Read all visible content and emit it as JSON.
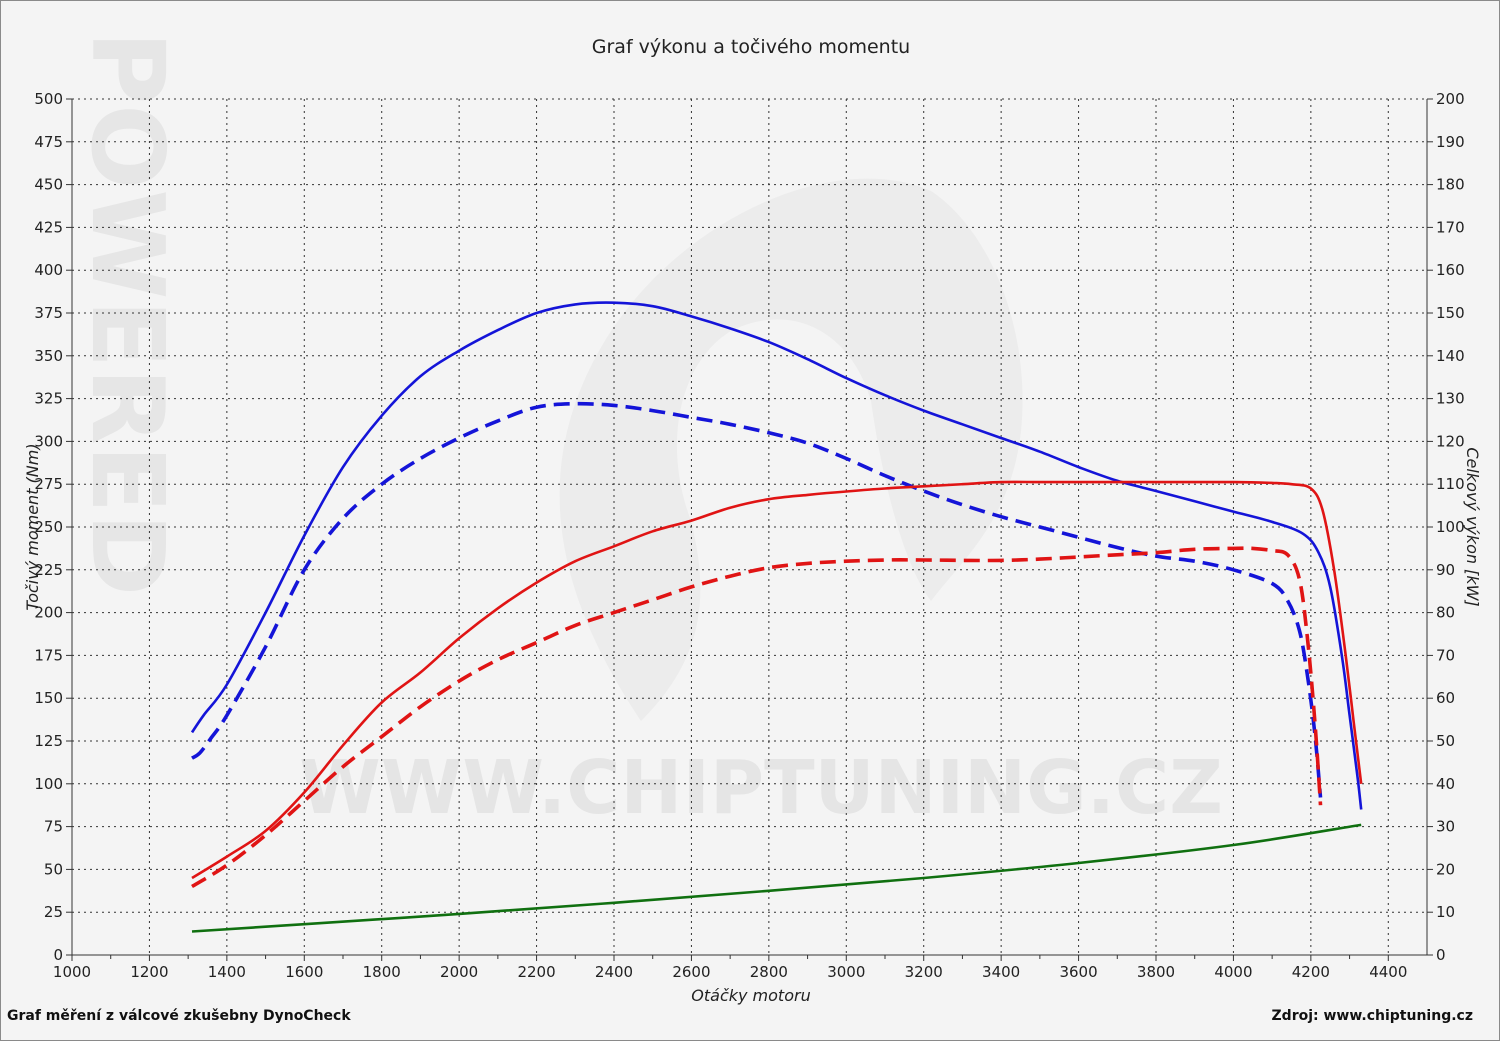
{
  "chart_data": {
    "type": "line",
    "title": "Graf výkonu a točivého momentu",
    "xlabel": "Otáčky motoru",
    "ylabel_left": "Točivý moment (Nm)",
    "ylabel_right": "Celkový výkon [kW]",
    "xlim": [
      1000,
      4500
    ],
    "ylim_left": [
      0,
      500
    ],
    "ylim_right": [
      0,
      200
    ],
    "x_ticks": [
      "1000",
      "1200",
      "1400",
      "1600",
      "1800",
      "2000",
      "2200",
      "2400",
      "2600",
      "2800",
      "3000",
      "3200",
      "3400",
      "3600",
      "3800",
      "4000",
      "4200",
      "4400"
    ],
    "y_left_ticks": [
      "0",
      "25",
      "50",
      "75",
      "100",
      "125",
      "150",
      "175",
      "200",
      "225",
      "250",
      "275",
      "300",
      "325",
      "350",
      "375",
      "400",
      "425",
      "450",
      "475",
      "500"
    ],
    "y_right_ticks": [
      "0",
      "10",
      "20",
      "30",
      "40",
      "50",
      "60",
      "70",
      "80",
      "90",
      "100",
      "110",
      "120",
      "130",
      "140",
      "150",
      "160",
      "170",
      "180",
      "190",
      "200"
    ],
    "grid": true,
    "series": [
      {
        "key": "torque_tuned",
        "axis": "left",
        "color": "#1414d8",
        "dash": false,
        "x": [
          1310,
          1340,
          1400,
          1500,
          1600,
          1700,
          1800,
          1900,
          2000,
          2100,
          2200,
          2300,
          2400,
          2500,
          2600,
          2700,
          2800,
          2900,
          3000,
          3100,
          3200,
          3300,
          3400,
          3500,
          3600,
          3700,
          3800,
          3900,
          4000,
          4100,
          4180,
          4220,
          4250,
          4280,
          4300,
          4320,
          4330
        ],
        "y": [
          130,
          140,
          158,
          200,
          245,
          285,
          315,
          338,
          353,
          365,
          375,
          380,
          381,
          379,
          373,
          366,
          358,
          348,
          337,
          327,
          318,
          310,
          302,
          294,
          285,
          277,
          271,
          265,
          259,
          253,
          246,
          235,
          215,
          175,
          140,
          105,
          85
        ]
      },
      {
        "key": "torque_stock",
        "axis": "left",
        "color": "#1414d8",
        "dash": true,
        "x": [
          1310,
          1330,
          1360,
          1400,
          1500,
          1600,
          1700,
          1800,
          1900,
          2000,
          2100,
          2200,
          2300,
          2400,
          2500,
          2600,
          2700,
          2800,
          2900,
          3000,
          3100,
          3200,
          3300,
          3400,
          3500,
          3600,
          3700,
          3800,
          3900,
          4000,
          4100,
          4140,
          4170,
          4190,
          4210,
          4225
        ],
        "y": [
          115,
          118,
          127,
          140,
          180,
          225,
          255,
          275,
          290,
          302,
          312,
          320,
          322,
          321,
          318,
          314,
          310,
          305,
          299,
          290,
          280,
          271,
          263,
          256,
          250,
          244,
          238,
          233,
          230,
          225,
          217,
          207,
          190,
          165,
          130,
          92
        ]
      },
      {
        "key": "power_tuned",
        "axis": "right",
        "color": "#e01414",
        "dash": false,
        "x": [
          1310,
          1400,
          1500,
          1600,
          1700,
          1800,
          1900,
          2000,
          2100,
          2200,
          2300,
          2400,
          2500,
          2600,
          2700,
          2800,
          2900,
          3000,
          3100,
          3200,
          3300,
          3400,
          3500,
          3600,
          3700,
          3800,
          3900,
          4000,
          4100,
          4150,
          4200,
          4230,
          4260,
          4290,
          4310,
          4330
        ],
        "y": [
          18,
          23,
          29,
          38,
          49,
          59,
          66,
          74,
          81,
          87,
          92,
          95.5,
          99,
          101.5,
          104.5,
          106.5,
          107.5,
          108.3,
          109,
          109.5,
          110,
          110.5,
          110.5,
          110.5,
          110.5,
          110.5,
          110.5,
          110.5,
          110.3,
          110,
          109,
          104,
          90,
          70,
          55,
          40
        ]
      },
      {
        "key": "power_stock",
        "axis": "right",
        "color": "#e01414",
        "dash": true,
        "x": [
          1310,
          1400,
          1500,
          1600,
          1700,
          1800,
          1900,
          2000,
          2100,
          2200,
          2300,
          2400,
          2500,
          2600,
          2700,
          2800,
          2900,
          3000,
          3100,
          3200,
          3300,
          3400,
          3500,
          3600,
          3700,
          3800,
          3900,
          4000,
          4050,
          4100,
          4140,
          4170,
          4190,
          4210,
          4225
        ],
        "y": [
          16,
          21,
          28,
          36,
          44,
          51,
          58,
          64,
          69,
          73,
          77,
          80,
          83,
          86,
          88.5,
          90.5,
          91.5,
          92,
          92.3,
          92.3,
          92.2,
          92.2,
          92.5,
          93,
          93.5,
          94,
          94.8,
          95,
          95,
          94.5,
          93.5,
          88,
          75,
          55,
          35
        ]
      },
      {
        "key": "wheel_loss",
        "axis": "right",
        "color": "#107010",
        "dash": false,
        "x": [
          1310,
          1600,
          2000,
          2400,
          2800,
          3200,
          3600,
          4000,
          4330
        ],
        "y": [
          5.5,
          7.2,
          9.6,
          12.2,
          15,
          18,
          21.5,
          25.7,
          30.4
        ]
      }
    ]
  },
  "footer": {
    "left": "Graf měření z válcové zkušebny DynoCheck",
    "right": "Zdroj: www.chiptuning.cz"
  },
  "watermark": {
    "url": "WWW.CHIPTUNING.CZ",
    "side": "POWERED"
  }
}
